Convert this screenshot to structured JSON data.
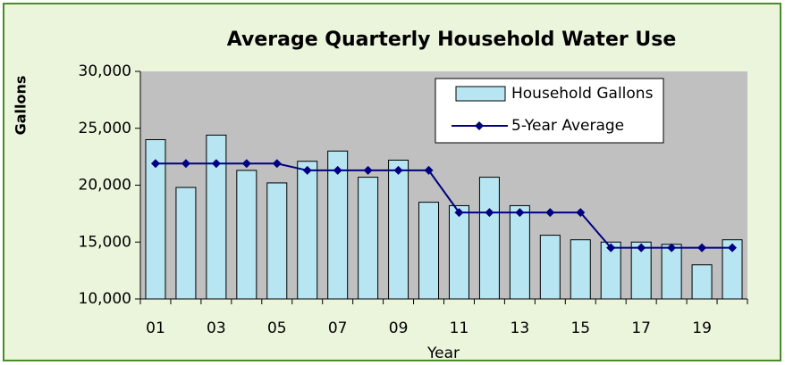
{
  "chart_data": {
    "type": "bar-line",
    "title": "Average Quarterly Household Water Use",
    "x_label": "Year",
    "y_label": "Gallons",
    "categories": [
      "01",
      null,
      "03",
      null,
      "05",
      null,
      "07",
      null,
      "09",
      null,
      "11",
      null,
      "13",
      null,
      "15",
      null,
      "17",
      null,
      "19",
      null
    ],
    "series": [
      {
        "name": "Household Gallons",
        "type": "bar",
        "color": "#b7e6f2",
        "values": [
          24000,
          19800,
          24400,
          21300,
          20200,
          22100,
          23000,
          20700,
          22200,
          18500,
          18200,
          20700,
          18200,
          15600,
          15200,
          15000,
          15000,
          14800,
          13000,
          15200
        ]
      },
      {
        "name": "5-Year Average",
        "type": "line",
        "color": "#000080",
        "values": [
          21900,
          21900,
          21900,
          21900,
          21900,
          21300,
          21300,
          21300,
          21300,
          21300,
          17600,
          17600,
          17600,
          17600,
          17600,
          14500,
          14500,
          14500,
          14500,
          14500
        ]
      }
    ],
    "ylim": [
      10000,
      30000
    ],
    "yticks": [
      {
        "value": 10000,
        "label": "10,000"
      },
      {
        "value": 15000,
        "label": "15,000"
      },
      {
        "value": 20000,
        "label": "20,000"
      },
      {
        "value": 25000,
        "label": "25,000"
      },
      {
        "value": 30000,
        "label": "30,000"
      }
    ]
  }
}
